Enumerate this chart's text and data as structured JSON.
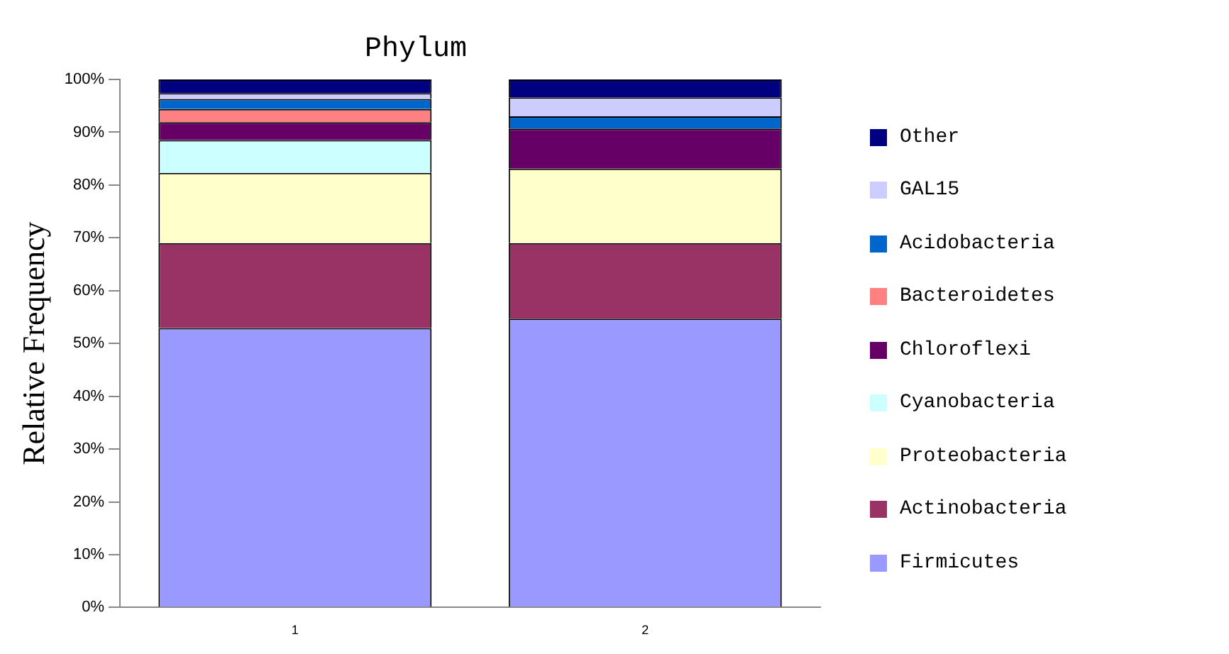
{
  "chart_data": {
    "type": "bar",
    "title": "Phylum",
    "ylabel": "Relative Frequency",
    "categories": [
      "1",
      "2"
    ],
    "stacked": true,
    "legend": "right",
    "grid": false,
    "ylim": [
      0,
      100
    ],
    "yticks": [
      {
        "value": 0,
        "label": "0%"
      },
      {
        "value": 10,
        "label": "10%"
      },
      {
        "value": 20,
        "label": "20%"
      },
      {
        "value": 30,
        "label": "30%"
      },
      {
        "value": 40,
        "label": "40%"
      },
      {
        "value": 50,
        "label": "50%"
      },
      {
        "value": 60,
        "label": "60%"
      },
      {
        "value": 70,
        "label": "70%"
      },
      {
        "value": 80,
        "label": "80%"
      },
      {
        "value": 90,
        "label": "90%"
      },
      {
        "value": 100,
        "label": "100%"
      }
    ],
    "series": [
      {
        "name": "Firmicutes",
        "color": "#9999ff",
        "values": [
          52.9,
          54.7
        ]
      },
      {
        "name": "Actinobacteria",
        "color": "#993366",
        "values": [
          16.1,
          14.3
        ]
      },
      {
        "name": "Proteobacteria",
        "color": "#ffffcc",
        "values": [
          13.3,
          14.1
        ]
      },
      {
        "name": "Cyanobacteria",
        "color": "#ccffff",
        "values": [
          6.2,
          0
        ]
      },
      {
        "name": "Chloroflexi",
        "color": "#660066",
        "values": [
          3.4,
          7.6
        ]
      },
      {
        "name": "Bacteroidetes",
        "color": "#ff8080",
        "values": [
          2.5,
          0
        ]
      },
      {
        "name": "Acidobacteria",
        "color": "#0066cc",
        "values": [
          1.9,
          2.3
        ]
      },
      {
        "name": "GAL15",
        "color": "#ccccff",
        "values": [
          1.1,
          3.6
        ]
      },
      {
        "name": "Other",
        "color": "#000080",
        "values": [
          2.6,
          3.4
        ]
      }
    ]
  }
}
